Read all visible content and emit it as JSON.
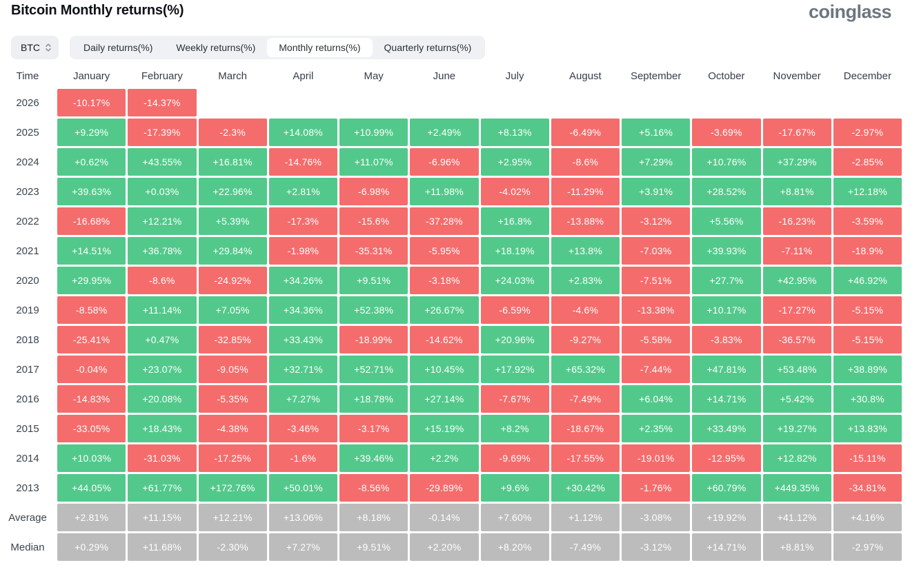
{
  "page": {
    "title": "Bitcoin Monthly returns(%)",
    "logo": "coinglass"
  },
  "controls": {
    "symbol_select": {
      "value": "BTC"
    },
    "tabs": [
      {
        "label": "Daily returns(%)",
        "active": false
      },
      {
        "label": "Weekly returns(%)",
        "active": false
      },
      {
        "label": "Monthly returns(%)",
        "active": true
      },
      {
        "label": "Quarterly returns(%)",
        "active": false
      }
    ]
  },
  "colors": {
    "positive": "#52C98B",
    "negative": "#F56C6C",
    "summary": "#BCBCBC",
    "cell_text": "#FFFFFF"
  },
  "chart_data": {
    "type": "heatmap",
    "title": "Bitcoin Monthly returns(%)",
    "time_column_header": "Time",
    "columns": [
      "January",
      "February",
      "March",
      "April",
      "May",
      "June",
      "July",
      "August",
      "September",
      "October",
      "November",
      "December"
    ],
    "rows": [
      {
        "label": "2026",
        "type": "year",
        "values": [
          "-10.17%",
          "-14.37%",
          "",
          "",
          "",
          "",
          "",
          "",
          "",
          "",
          "",
          ""
        ]
      },
      {
        "label": "2025",
        "type": "year",
        "values": [
          "+9.29%",
          "-17.39%",
          "-2.3%",
          "+14.08%",
          "+10.99%",
          "+2.49%",
          "+8.13%",
          "-6.49%",
          "+5.16%",
          "-3.69%",
          "-17.67%",
          "-2.97%"
        ]
      },
      {
        "label": "2024",
        "type": "year",
        "values": [
          "+0.62%",
          "+43.55%",
          "+16.81%",
          "-14.76%",
          "+11.07%",
          "-6.96%",
          "+2.95%",
          "-8.6%",
          "+7.29%",
          "+10.76%",
          "+37.29%",
          "-2.85%"
        ]
      },
      {
        "label": "2023",
        "type": "year",
        "values": [
          "+39.63%",
          "+0.03%",
          "+22.96%",
          "+2.81%",
          "-6.98%",
          "+11.98%",
          "-4.02%",
          "-11.29%",
          "+3.91%",
          "+28.52%",
          "+8.81%",
          "+12.18%"
        ]
      },
      {
        "label": "2022",
        "type": "year",
        "values": [
          "-16.68%",
          "+12.21%",
          "+5.39%",
          "-17.3%",
          "-15.6%",
          "-37.28%",
          "+16.8%",
          "-13.88%",
          "-3.12%",
          "+5.56%",
          "-16.23%",
          "-3.59%"
        ]
      },
      {
        "label": "2021",
        "type": "year",
        "values": [
          "+14.51%",
          "+36.78%",
          "+29.84%",
          "-1.98%",
          "-35.31%",
          "-5.95%",
          "+18.19%",
          "+13.8%",
          "-7.03%",
          "+39.93%",
          "-7.11%",
          "-18.9%"
        ]
      },
      {
        "label": "2020",
        "type": "year",
        "values": [
          "+29.95%",
          "-8.6%",
          "-24.92%",
          "+34.26%",
          "+9.51%",
          "-3.18%",
          "+24.03%",
          "+2.83%",
          "-7.51%",
          "+27.7%",
          "+42.95%",
          "+46.92%"
        ]
      },
      {
        "label": "2019",
        "type": "year",
        "values": [
          "-8.58%",
          "+11.14%",
          "+7.05%",
          "+34.36%",
          "+52.38%",
          "+26.67%",
          "-6.59%",
          "-4.6%",
          "-13.38%",
          "+10.17%",
          "-17.27%",
          "-5.15%"
        ]
      },
      {
        "label": "2018",
        "type": "year",
        "values": [
          "-25.41%",
          "+0.47%",
          "-32.85%",
          "+33.43%",
          "-18.99%",
          "-14.62%",
          "+20.96%",
          "-9.27%",
          "-5.58%",
          "-3.83%",
          "-36.57%",
          "-5.15%"
        ]
      },
      {
        "label": "2017",
        "type": "year",
        "values": [
          "-0.04%",
          "+23.07%",
          "-9.05%",
          "+32.71%",
          "+52.71%",
          "+10.45%",
          "+17.92%",
          "+65.32%",
          "-7.44%",
          "+47.81%",
          "+53.48%",
          "+38.89%"
        ]
      },
      {
        "label": "2016",
        "type": "year",
        "values": [
          "-14.83%",
          "+20.08%",
          "-5.35%",
          "+7.27%",
          "+18.78%",
          "+27.14%",
          "-7.67%",
          "-7.49%",
          "+6.04%",
          "+14.71%",
          "+5.42%",
          "+30.8%"
        ]
      },
      {
        "label": "2015",
        "type": "year",
        "values": [
          "-33.05%",
          "+18.43%",
          "-4.38%",
          "-3.46%",
          "-3.17%",
          "+15.19%",
          "+8.2%",
          "-18.67%",
          "+2.35%",
          "+33.49%",
          "+19.27%",
          "+13.83%"
        ]
      },
      {
        "label": "2014",
        "type": "year",
        "values": [
          "+10.03%",
          "-31.03%",
          "-17.25%",
          "-1.6%",
          "+39.46%",
          "+2.2%",
          "-9.69%",
          "-17.55%",
          "-19.01%",
          "-12.95%",
          "+12.82%",
          "-15.11%"
        ]
      },
      {
        "label": "2013",
        "type": "year",
        "values": [
          "+44.05%",
          "+61.77%",
          "+172.76%",
          "+50.01%",
          "-8.56%",
          "-29.89%",
          "+9.6%",
          "+30.42%",
          "-1.76%",
          "+60.79%",
          "+449.35%",
          "-34.81%"
        ]
      },
      {
        "label": "Average",
        "type": "summary",
        "values": [
          "+2.81%",
          "+11.15%",
          "+12.21%",
          "+13.06%",
          "+8.18%",
          "-0.14%",
          "+7.60%",
          "+1.12%",
          "-3.08%",
          "+19.92%",
          "+41.12%",
          "+4.16%"
        ]
      },
      {
        "label": "Median",
        "type": "summary",
        "values": [
          "+0.29%",
          "+11.68%",
          "-2.30%",
          "+7.27%",
          "+9.51%",
          "+2.20%",
          "+8.20%",
          "-7.49%",
          "-3.12%",
          "+14.71%",
          "+8.81%",
          "-2.97%"
        ]
      }
    ]
  }
}
